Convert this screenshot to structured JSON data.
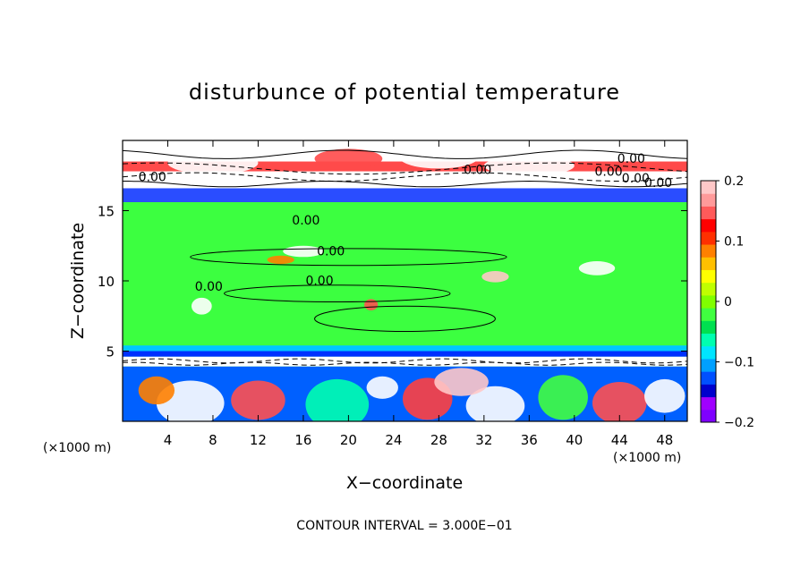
{
  "chart_data": {
    "type": "heatmap",
    "title": "disturbunce of potential temperature",
    "xlabel": "X−coordinate",
    "ylabel": "Z−coordinate",
    "x_unit_left": "(×1000 m)",
    "x_unit_right": "(×1000 m)",
    "xlim": [
      0,
      50
    ],
    "ylim": [
      0,
      20
    ],
    "x_ticks": [
      4,
      8,
      12,
      16,
      20,
      24,
      28,
      32,
      36,
      40,
      44,
      48
    ],
    "y_ticks": [
      5,
      10,
      15
    ],
    "colorbar": {
      "range": [
        -0.2,
        0.2
      ],
      "ticks": [
        0.2,
        0.1,
        0,
        -0.1,
        -0.2
      ],
      "tick_labels": [
        "0.2",
        "0.1",
        "0",
        "−0.1",
        "−0.2"
      ],
      "colors": [
        "#7f00ff",
        "#a000ff",
        "#0000cd",
        "#0050ff",
        "#00a0ff",
        "#00e5ff",
        "#00ffb0",
        "#00e050",
        "#40ff40",
        "#80ff00",
        "#c0ff00",
        "#ffff00",
        "#ffc000",
        "#ff8000",
        "#ff3000",
        "#ff0000",
        "#ff5a5a",
        "#ff9a9a",
        "#ffc8c8"
      ]
    },
    "contour_labels": [
      {
        "text": "0.00",
        "x": 17.2,
        "y": 11.8
      },
      {
        "text": "0.00",
        "x": 16.2,
        "y": 9.7
      },
      {
        "text": "0.00",
        "x": 1.4,
        "y": 17.1
      },
      {
        "text": "0.00",
        "x": 43.8,
        "y": 18.4
      },
      {
        "text": "0.00",
        "x": 41.8,
        "y": 17.5
      },
      {
        "text": "0.00",
        "x": 30.2,
        "y": 17.6
      },
      {
        "text": "0.00",
        "x": 46.2,
        "y": 16.7
      },
      {
        "text": "0.00",
        "x": 44.2,
        "y": 17.0
      },
      {
        "text": "0.00",
        "x": 6.4,
        "y": 9.3
      },
      {
        "text": "0.00",
        "x": 15.0,
        "y": 14.0
      }
    ],
    "bands": [
      {
        "z0": 15.7,
        "z1": 20.0,
        "color": "#ffffff"
      },
      {
        "z0": 15.6,
        "z1": 16.6,
        "color": "#2a4dff"
      },
      {
        "z0": 16.6,
        "z1": 17.0,
        "color": "#ffffff"
      },
      {
        "z0": 17.8,
        "z1": 18.5,
        "color": "#ff4a4a"
      },
      {
        "z0": 4.6,
        "z1": 15.6,
        "color": "#3cff40"
      },
      {
        "z0": 4.6,
        "z1": 5.4,
        "color": "#00c8ff"
      },
      {
        "z0": 4.6,
        "z1": 5.0,
        "color": "#0030ff"
      },
      {
        "z0": 3.9,
        "z1": 4.6,
        "color": "#ffffff"
      },
      {
        "z0": 0.0,
        "z1": 3.9,
        "color": "#0060ff"
      }
    ]
  },
  "footer": {
    "contour_interval": "CONTOUR INTERVAL = 3.000E−01"
  }
}
